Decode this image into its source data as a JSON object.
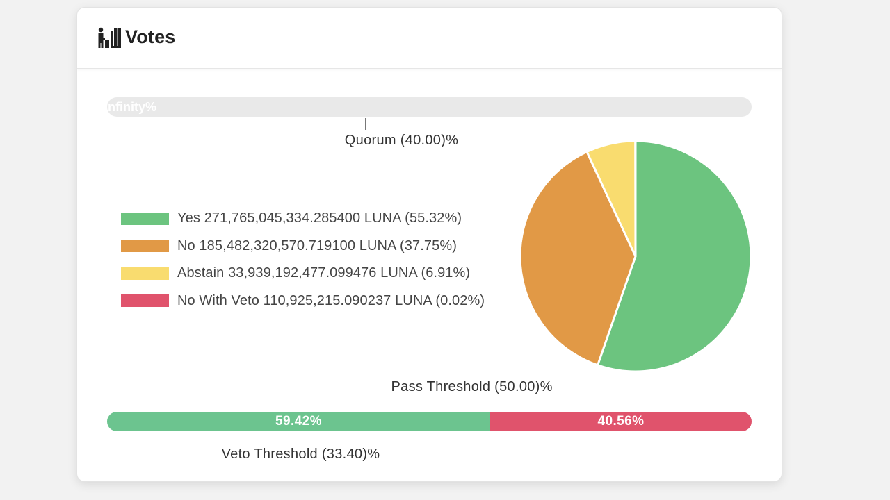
{
  "header": {
    "title": "Votes",
    "icon": "ballot-box-icon"
  },
  "quorum": {
    "bar_label": "Infinity%",
    "fill_fraction": 1.0,
    "marker_label": "Quorum (40.00)%",
    "marker_value": 0.4
  },
  "chart_data": {
    "type": "pie",
    "title": "",
    "legend_position": "left",
    "slices": [
      {
        "label": "Yes 271,765,045,334.285400 LUNA (55.32%)",
        "value": 55.32,
        "color": "#6cc47f"
      },
      {
        "label": "No 185,482,320,570.719100 LUNA (37.75%)",
        "value": 37.75,
        "color": "#e19946"
      },
      {
        "label": "Abstain 33,939,192,477.099476 LUNA (6.91%)",
        "value": 6.91,
        "color": "#f9dc6f"
      },
      {
        "label": "No With Veto 110,925,215.090237 LUNA (0.02%)",
        "value": 0.02,
        "color": "#e0536c"
      }
    ]
  },
  "thresholds": {
    "pass": {
      "label": "Pass Threshold (50.00)%",
      "value": 0.5
    },
    "veto": {
      "label": "Veto Threshold (33.40)%",
      "value": 0.334
    }
  },
  "result_bar": {
    "segments": [
      {
        "label": "59.42%",
        "value": 59.42,
        "color": "#6cc48f"
      },
      {
        "label": "40.56%",
        "value": 40.56,
        "color": "#e0536c"
      }
    ]
  }
}
